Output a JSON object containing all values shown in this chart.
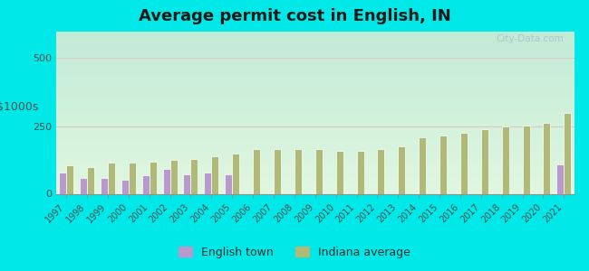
{
  "title": "Average permit cost in English, IN",
  "ylabel": "$1000s",
  "years": [
    1997,
    1998,
    1999,
    2000,
    2001,
    2002,
    2003,
    2004,
    2005,
    2006,
    2007,
    2008,
    2009,
    2010,
    2011,
    2012,
    2013,
    2014,
    2015,
    2016,
    2017,
    2018,
    2019,
    2020,
    2021
  ],
  "english_values": [
    80,
    58,
    58,
    52,
    68,
    92,
    72,
    78,
    72,
    0,
    0,
    0,
    0,
    0,
    0,
    0,
    0,
    0,
    0,
    0,
    0,
    0,
    0,
    0,
    108
  ],
  "indiana_values": [
    105,
    100,
    115,
    115,
    120,
    125,
    130,
    140,
    150,
    165,
    165,
    165,
    165,
    160,
    160,
    165,
    175,
    210,
    215,
    225,
    238,
    248,
    253,
    262,
    298
  ],
  "english_color": "#b899cc",
  "indiana_color": "#b0ba78",
  "background_top": "#c8edd8",
  "background_bottom": "#d8f0d0",
  "background_outer": "#00e8e8",
  "ylim": [
    0,
    600
  ],
  "yticks": [
    0,
    250,
    500
  ],
  "grid_color": "#ddc8c8",
  "title_fontsize": 13,
  "bar_width": 0.35,
  "legend_english": "English town",
  "legend_indiana": "Indiana average"
}
